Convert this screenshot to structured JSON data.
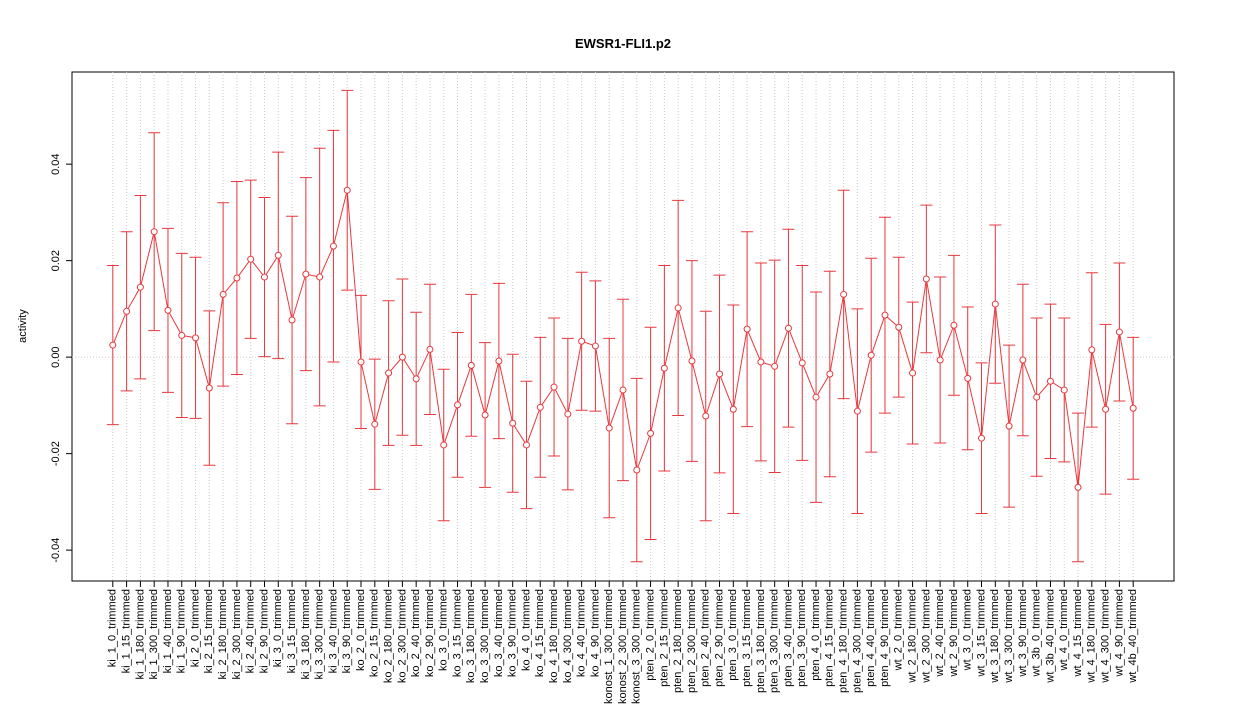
{
  "chart_data": {
    "type": "line_errorbar",
    "title": "EWSR1-FLI1.p2",
    "y_label": "activity",
    "color": "#e8383d",
    "grid": true,
    "categories": [
      "ki_1_0_trimmed",
      "ki_1_15_trimmed",
      "ki_1_180_trimmed",
      "ki_1_300_trimmed",
      "ki_1_40_trimmed",
      "ki_1_90_trimmed",
      "ki_2_0_trimmed",
      "ki_2_15_trimmed",
      "ki_2_180_trimmed",
      "ki_2_300_trimmed",
      "ki_2_40_trimmed",
      "ki_2_90_trimmed",
      "ki_3_0_trimmed",
      "ki_3_15_trimmed",
      "ki_3_180_trimmed",
      "ki_3_300_trimmed",
      "ki_3_40_trimmed",
      "ki_3_90_trimmed",
      "ko_2_0_trimmed",
      "ko_2_15_trimmed",
      "ko_2_180_trimmed",
      "ko_2_300_trimmed",
      "ko_2_40_trimmed",
      "ko_2_90_trimmed",
      "ko_3_0_trimmed",
      "ko_3_15_trimmed",
      "ko_3_180_trimmed",
      "ko_3_300_trimmed",
      "ko_3_40_trimmed",
      "ko_3_90_trimmed",
      "ko_4_0_trimmed",
      "ko_4_15_trimmed",
      "ko_4_180_trimmed",
      "ko_4_300_trimmed",
      "ko_4_40_trimmed",
      "ko_4_90_trimmed",
      "konost_1_300_trimmed",
      "konost_2_300_trimmed",
      "konost_3_300_trimmed",
      "pten_2_0_trimmed",
      "pten_2_15_trimmed",
      "pten_2_180_trimmed",
      "pten_2_300_trimmed",
      "pten_2_40_trimmed",
      "pten_2_90_trimmed",
      "pten_3_0_trimmed",
      "pten_3_15_trimmed",
      "pten_3_180_trimmed",
      "pten_3_300_trimmed",
      "pten_3_40_trimmed",
      "pten_3_90_trimmed",
      "pten_4_0_trimmed",
      "pten_4_15_trimmed",
      "pten_4_180_trimmed",
      "pten_4_300_trimmed",
      "pten_4_40_trimmed",
      "pten_4_90_trimmed",
      "wt_2_0_trimmed",
      "wt_2_180_trimmed",
      "wt_2_300_trimmed",
      "wt_2_40_trimmed",
      "wt_2_90_trimmed",
      "wt_3_0_trimmed",
      "wt_3_15_trimmed",
      "wt_3_180_trimmed",
      "wt_3_300_trimmed",
      "wt_3_90_trimmed",
      "wt_3b_0_trimmed",
      "wt_3b_40_trimmed",
      "wt_4_0_trimmed",
      "wt_4_15_trimmed",
      "wt_4_180_trimmed",
      "wt_4_300_trimmed",
      "wt_4_90_trimmed",
      "wt_4b_40_trimmed"
    ],
    "values": [
      0.0025,
      0.0095,
      0.0145,
      0.026,
      0.0097,
      0.0045,
      0.004,
      -0.0064,
      0.013,
      0.0164,
      0.0203,
      0.0166,
      0.0211,
      0.0077,
      0.0172,
      0.0166,
      0.023,
      0.0346,
      -0.001,
      -0.0139,
      -0.0033,
      0,
      -0.0045,
      0.0016,
      -0.0182,
      -0.0099,
      -0.0017,
      -0.012,
      -0.0008,
      -0.0137,
      -0.0182,
      -0.0104,
      -0.0062,
      -0.0118,
      0.0033,
      0.0023,
      -0.0147,
      -0.0068,
      -0.0234,
      -0.0158,
      -0.0023,
      0.0102,
      -0.0008,
      -0.0122,
      -0.0035,
      -0.0108,
      0.0058,
      -0.001,
      -0.0019,
      0.006,
      -0.0012,
      -0.0083,
      -0.0035,
      0.013,
      -0.0112,
      0.0004,
      0.0087,
      0.0062,
      -0.0033,
      0.0162,
      -0.0006,
      0.0066,
      -0.0044,
      -0.0168,
      0.011,
      -0.0143,
      -0.0006,
      -0.0083,
      -0.005,
      -0.0068,
      -0.027,
      0.0015,
      -0.0108,
      0.0052,
      -0.0106
    ],
    "errors": [
      0.0165,
      0.0165,
      0.019,
      0.0205,
      0.017,
      0.017,
      0.0167,
      0.016,
      0.019,
      0.02,
      0.0164,
      0.0165,
      0.0214,
      0.0215,
      0.02,
      0.0267,
      0.024,
      0.0207,
      0.0138,
      0.0135,
      0.015,
      0.0162,
      0.0138,
      0.0135,
      0.0157,
      0.015,
      0.0147,
      0.015,
      0.0161,
      0.0143,
      0.0132,
      0.0145,
      0.0143,
      0.0157,
      0.0143,
      0.0135,
      0.0186,
      0.0188,
      0.019,
      0.022,
      0.0213,
      0.0223,
      0.0208,
      0.0217,
      0.0205,
      0.0216,
      0.0202,
      0.0205,
      0.022,
      0.0205,
      0.0202,
      0.0218,
      0.0213,
      0.0216,
      0.0212,
      0.0201,
      0.0203,
      0.0145,
      0.0147,
      0.0153,
      0.0172,
      0.0145,
      0.0148,
      0.0156,
      0.0164,
      0.0168,
      0.0157,
      0.0164,
      0.016,
      0.0149,
      0.0154,
      0.016,
      0.0176,
      0.0143,
      0.0147
    ],
    "ylim": [
      -0.0464,
      0.0591
    ],
    "yticks": [
      -0.04,
      -0.02,
      {
        "value": 0,
        "label": "0.00"
      },
      0.02,
      0.04
    ]
  }
}
